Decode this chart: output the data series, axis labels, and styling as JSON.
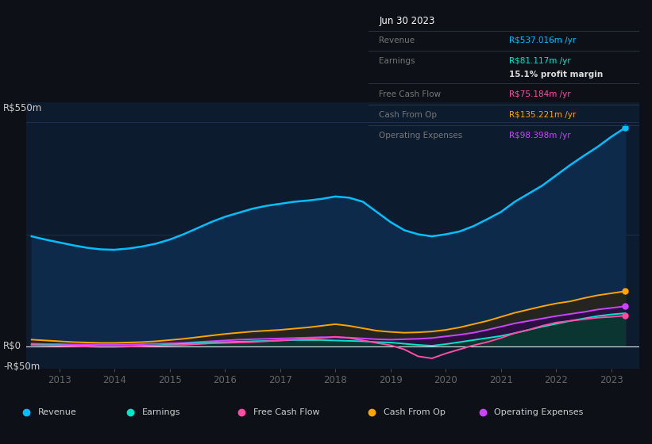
{
  "bg_color": "#0d1117",
  "plot_bg_color": "#0d1b2e",
  "ylim": [
    -55,
    600
  ],
  "years": [
    2012.5,
    2012.75,
    2013.0,
    2013.25,
    2013.5,
    2013.75,
    2014.0,
    2014.25,
    2014.5,
    2014.75,
    2015.0,
    2015.25,
    2015.5,
    2015.75,
    2016.0,
    2016.25,
    2016.5,
    2016.75,
    2017.0,
    2017.25,
    2017.5,
    2017.75,
    2018.0,
    2018.25,
    2018.5,
    2018.75,
    2019.0,
    2019.25,
    2019.5,
    2019.75,
    2020.0,
    2020.25,
    2020.5,
    2020.75,
    2021.0,
    2021.25,
    2021.5,
    2021.75,
    2022.0,
    2022.25,
    2022.5,
    2022.75,
    2023.0,
    2023.25
  ],
  "revenue": [
    270,
    262,
    255,
    248,
    242,
    238,
    237,
    240,
    245,
    252,
    262,
    275,
    290,
    305,
    318,
    328,
    338,
    345,
    350,
    355,
    358,
    362,
    368,
    365,
    355,
    330,
    305,
    285,
    275,
    270,
    275,
    282,
    295,
    312,
    330,
    355,
    375,
    395,
    420,
    445,
    468,
    490,
    515,
    537
  ],
  "earnings": [
    4,
    3,
    2,
    1,
    1,
    0,
    0,
    0,
    1,
    2,
    4,
    6,
    8,
    9,
    10,
    11,
    12,
    13,
    14,
    15,
    15,
    15,
    14,
    13,
    12,
    10,
    9,
    6,
    3,
    1,
    5,
    10,
    15,
    20,
    25,
    32,
    40,
    48,
    55,
    62,
    68,
    74,
    78,
    81
  ],
  "free_cash_flow": [
    3,
    2,
    1,
    0,
    -1,
    -2,
    -2,
    -1,
    0,
    1,
    2,
    3,
    5,
    7,
    8,
    9,
    10,
    12,
    14,
    16,
    18,
    20,
    23,
    20,
    14,
    8,
    2,
    -8,
    -25,
    -30,
    -18,
    -8,
    2,
    10,
    20,
    32,
    40,
    50,
    58,
    62,
    66,
    70,
    72,
    75
  ],
  "cash_from_op": [
    16,
    14,
    12,
    10,
    9,
    8,
    8,
    9,
    10,
    12,
    15,
    18,
    22,
    26,
    30,
    33,
    36,
    38,
    40,
    43,
    46,
    50,
    54,
    50,
    44,
    38,
    35,
    33,
    34,
    36,
    40,
    46,
    54,
    62,
    72,
    82,
    90,
    98,
    105,
    110,
    118,
    125,
    130,
    135
  ],
  "operating_expenses": [
    6,
    5,
    5,
    4,
    4,
    4,
    4,
    4,
    5,
    6,
    7,
    8,
    10,
    12,
    14,
    16,
    17,
    18,
    19,
    20,
    21,
    22,
    22,
    21,
    19,
    17,
    16,
    17,
    18,
    20,
    24,
    28,
    33,
    40,
    48,
    56,
    62,
    68,
    74,
    79,
    84,
    90,
    94,
    98
  ],
  "revenue_color": "#00bfff",
  "earnings_color": "#00e5cc",
  "fcf_color": "#ff4da6",
  "cashop_color": "#ffa500",
  "opex_color": "#cc44ff",
  "legend_items": [
    {
      "label": "Revenue",
      "color": "#00bfff"
    },
    {
      "label": "Earnings",
      "color": "#00e5cc"
    },
    {
      "label": "Free Cash Flow",
      "color": "#ff4da6"
    },
    {
      "label": "Cash From Op",
      "color": "#ffa500"
    },
    {
      "label": "Operating Expenses",
      "color": "#cc44ff"
    }
  ],
  "tooltip": {
    "date": "Jun 30 2023",
    "revenue_val": "R$537.016m",
    "earnings_val": "R$81.117m",
    "margin": "15.1%",
    "fcf_val": "R$75.184m",
    "cashop_val": "R$135.221m",
    "opex_val": "R$98.398m"
  },
  "x_ticks": [
    2013,
    2014,
    2015,
    2016,
    2017,
    2018,
    2019,
    2020,
    2021,
    2022,
    2023
  ],
  "x_lim": [
    2012.4,
    2023.5
  ],
  "gridlines": [
    550,
    275,
    0
  ],
  "ylabel_550": "R$550m",
  "ylabel_0": "R$0",
  "ylabel_neg50": "-R$50m"
}
